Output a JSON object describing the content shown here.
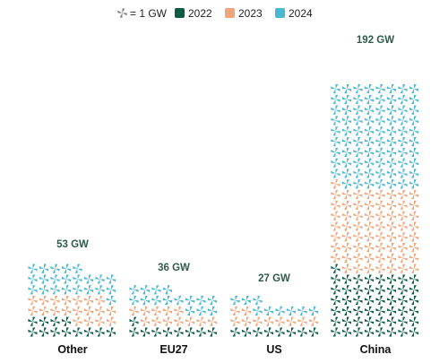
{
  "legend": {
    "unit_label": "= 1 GW",
    "unit_icon": "wind-turbine-icon",
    "unit_color": "#7a7a7a"
  },
  "chart_data": {
    "type": "bar",
    "stacked": true,
    "style": "pictogram waffle",
    "unit": "GW",
    "categories": [
      "Other",
      "EU27",
      "US",
      "China"
    ],
    "series": [
      {
        "name": "2022",
        "color": "#0b5a45",
        "values": [
          12,
          9,
          8,
          49
        ]
      },
      {
        "name": "2023",
        "color": "#f2a47a",
        "values": [
          19,
          12,
          10,
          64
        ]
      },
      {
        "name": "2024",
        "color": "#49b8d3",
        "values": [
          22,
          15,
          9,
          79
        ]
      }
    ],
    "totals": [
      53,
      36,
      27,
      192
    ],
    "total_labels": [
      "53 GW",
      "36 GW",
      "27 GW",
      "192 GW"
    ],
    "legend_position": "top"
  }
}
